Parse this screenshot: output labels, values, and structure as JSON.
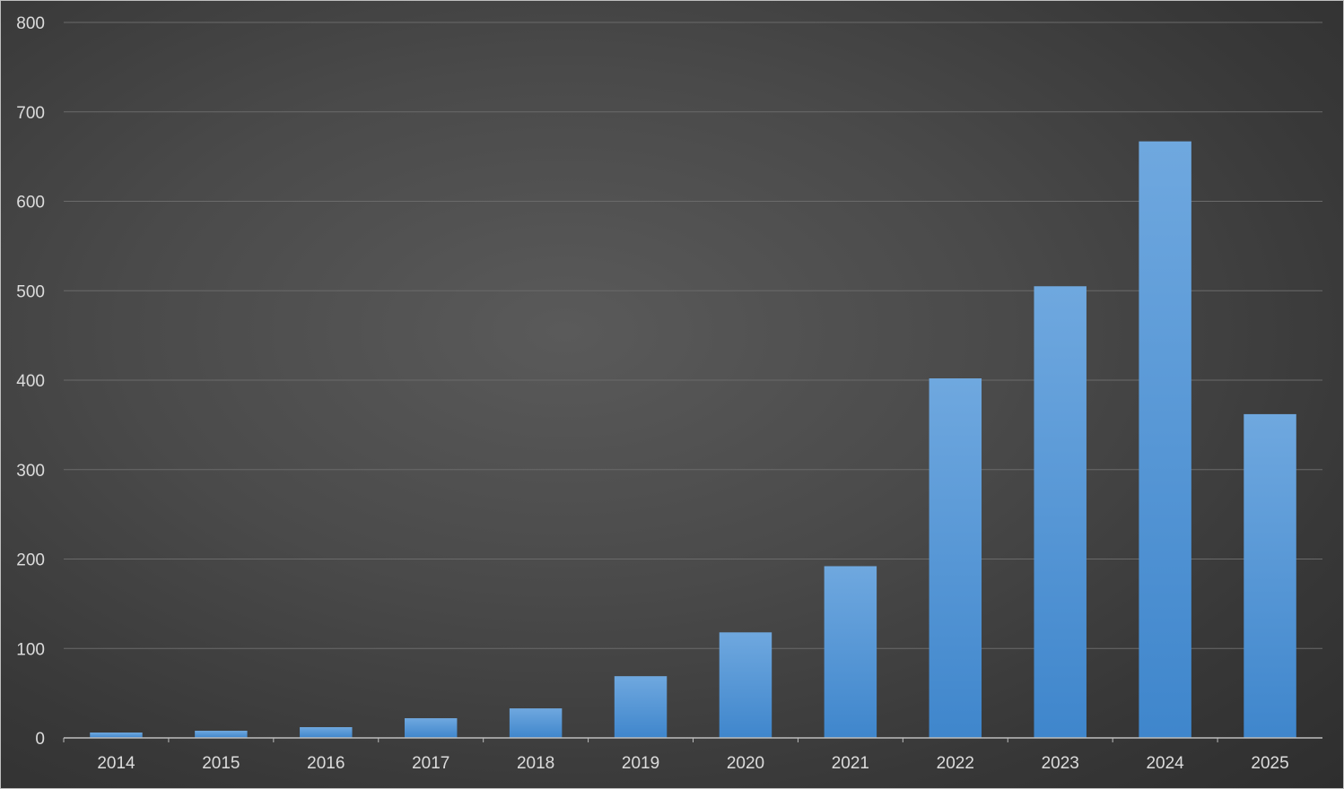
{
  "chart_data": {
    "type": "bar",
    "title": "",
    "xlabel": "",
    "ylabel": "",
    "categories": [
      "2014",
      "2015",
      "2016",
      "2017",
      "2018",
      "2019",
      "2020",
      "2021",
      "2022",
      "2023",
      "2024",
      "2025"
    ],
    "values": [
      6,
      8,
      12,
      22,
      33,
      69,
      118,
      192,
      402,
      505,
      667,
      362
    ],
    "ylim": [
      0,
      800
    ],
    "yticks": [
      0,
      100,
      200,
      300,
      400,
      500,
      600,
      700,
      800
    ],
    "grid": true,
    "legend": "none",
    "colors": {
      "bar_top": "#6fa8df",
      "bar_bottom": "#3f86cc",
      "grid": "#6a6a6a",
      "axis": "#bdbdbd",
      "text": "#dcdcdc"
    }
  }
}
